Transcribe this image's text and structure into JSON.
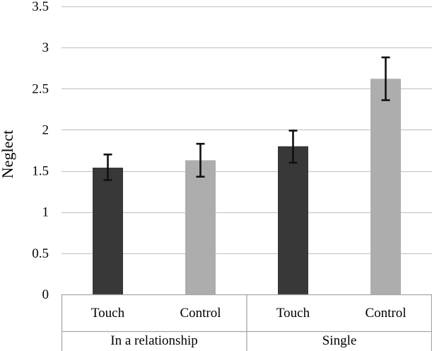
{
  "chart_data": {
    "type": "bar",
    "title": "",
    "xlabel": "",
    "ylabel": "Neglect",
    "ylim": [
      0,
      3.5
    ],
    "yticks": [
      "0",
      "0.5",
      "1",
      "1.5",
      "2",
      "2.5",
      "3",
      "3.5"
    ],
    "grid": true,
    "groups": [
      {
        "label": "In a relationship",
        "bars": [
          {
            "category": "Touch",
            "value": 1.54,
            "error_low": 1.39,
            "error_high": 1.7
          },
          {
            "category": "Control",
            "value": 1.63,
            "error_low": 1.43,
            "error_high": 1.83
          }
        ]
      },
      {
        "label": "Single",
        "bars": [
          {
            "category": "Touch",
            "value": 1.8,
            "error_low": 1.6,
            "error_high": 1.99
          },
          {
            "category": "Control",
            "value": 2.62,
            "error_low": 2.36,
            "error_high": 2.88
          }
        ]
      }
    ],
    "colors": {
      "Touch": "#383838",
      "Control": "#adadad"
    },
    "gridline_color": "#c8c8c8",
    "axis_color": "#a6a6a6",
    "errorbar_color": "#111111"
  }
}
